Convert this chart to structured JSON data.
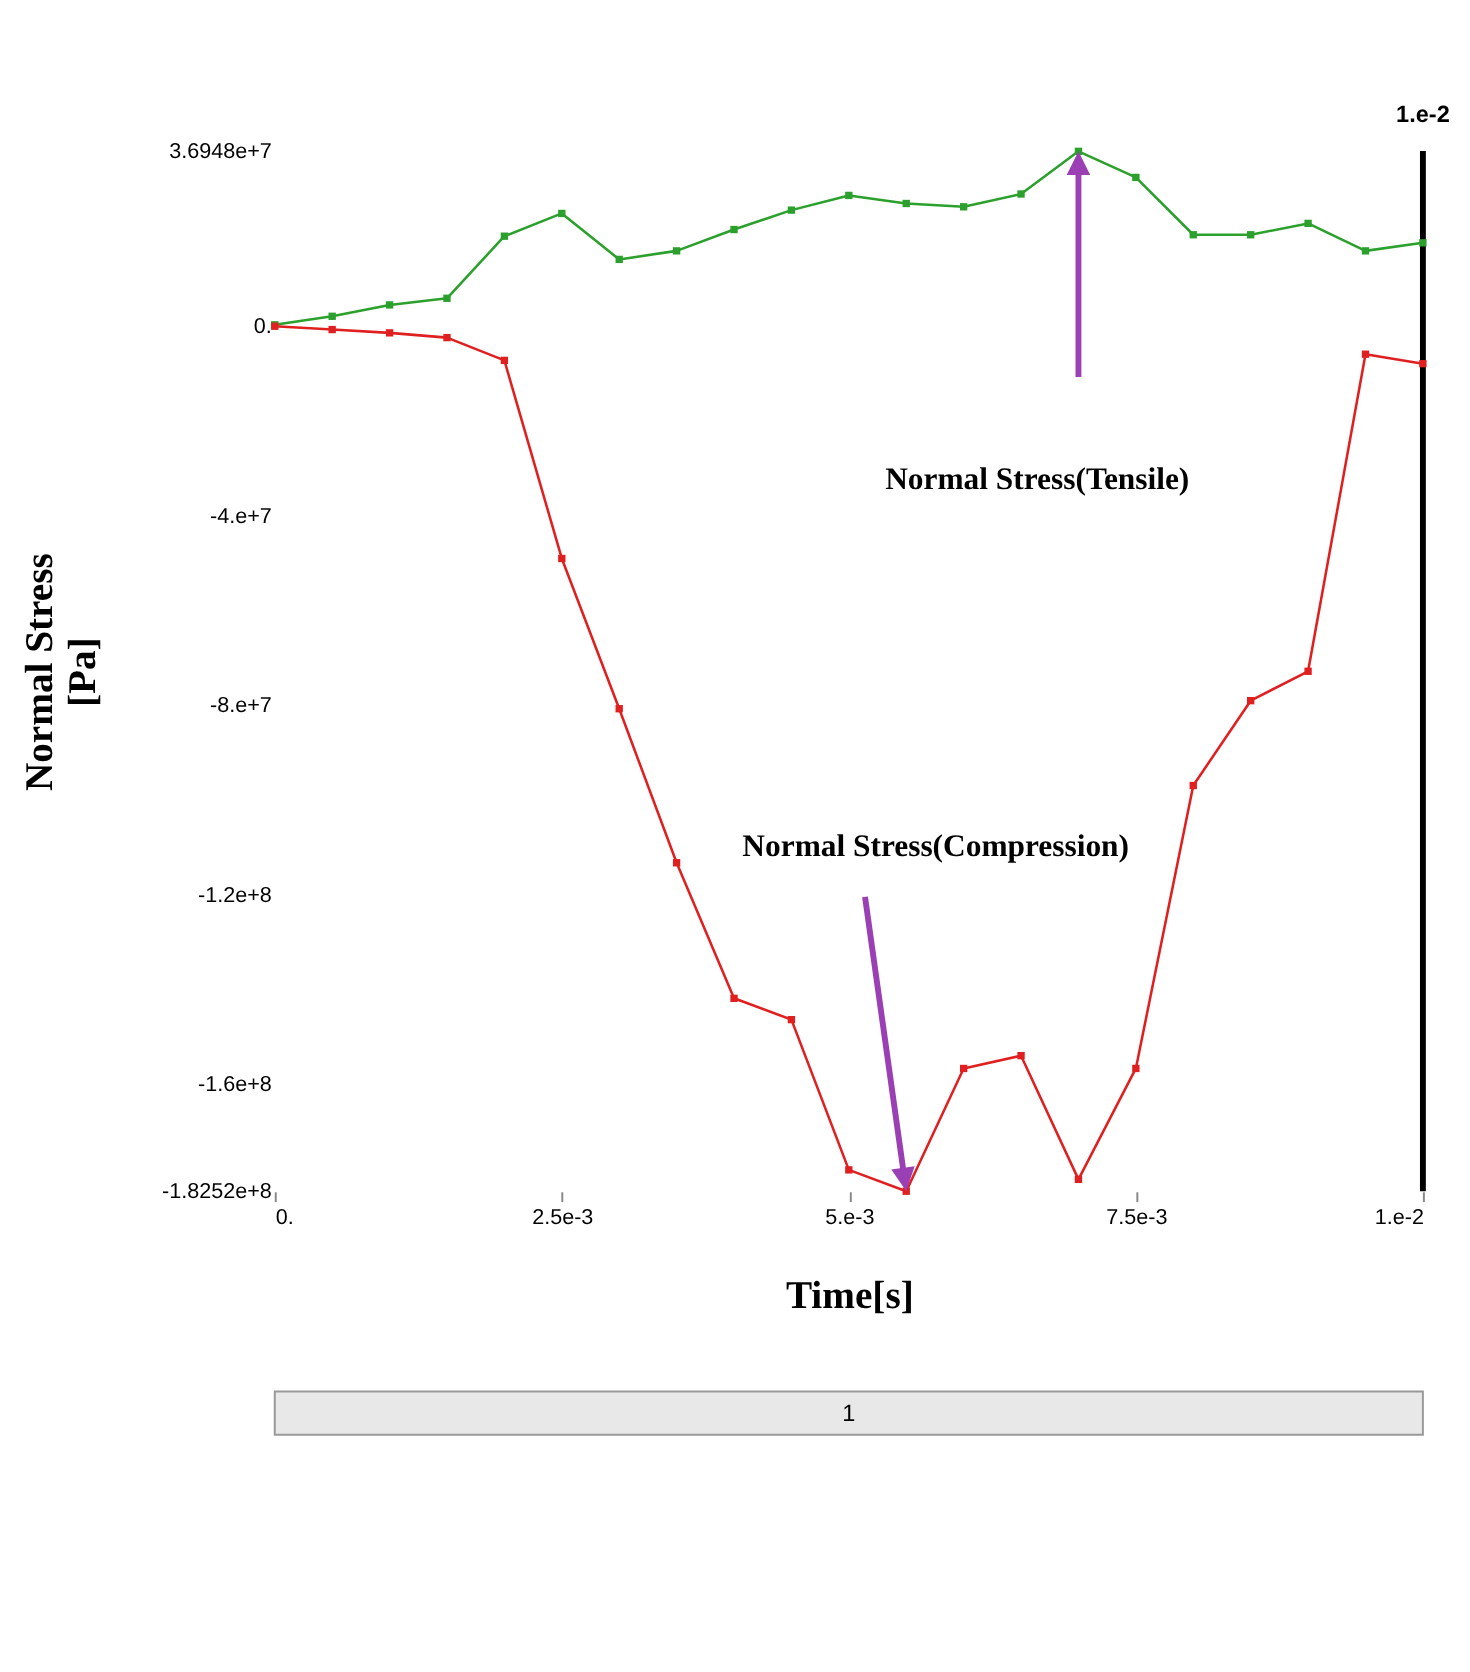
{
  "chart_data": {
    "type": "line",
    "xlabel": "Time[s]",
    "ylabel": "Normal Stress\n[Pa]",
    "x": [
      0,
      0.0005,
      0.001,
      0.0015,
      0.002,
      0.0025,
      0.003,
      0.0035,
      0.004,
      0.0045,
      0.005,
      0.0055,
      0.006,
      0.0065,
      0.007,
      0.0075,
      0.008,
      0.0085,
      0.009,
      0.0095,
      0.01
    ],
    "series": [
      {
        "color": "#2ca02c",
        "values": [
          300000,
          2100000,
          4500000,
          5900000,
          19000000,
          23800000,
          14100000,
          15900000,
          20400000,
          24500000,
          27600000,
          25900000,
          25200000,
          27900000,
          36900000,
          31400000,
          19300000,
          19300000,
          21700000,
          15900000,
          17600000
        ]
      },
      {
        "color": "#e02020",
        "values": [
          0,
          -700000,
          -1400000,
          -2400000,
          -7200000,
          -49000000,
          -80700000,
          -113200000,
          -141800000,
          -146300000,
          -178000000,
          -182500000,
          -156600000,
          -153900000,
          -180000000,
          -156600000,
          -96900000,
          -79000000,
          -72800000,
          -5900000,
          -7900000
        ]
      }
    ],
    "xlim": [
      0,
      0.01
    ],
    "xticks": [
      {
        "value": 0,
        "label": "0."
      },
      {
        "value": 0.0025,
        "label": "2.5e-3"
      },
      {
        "value": 0.005,
        "label": "5.e-3"
      },
      {
        "value": 0.0075,
        "label": "7.5e-3"
      },
      {
        "value": 0.01,
        "label": "1.e-2"
      }
    ],
    "ylim": [
      -182520000,
      36948000
    ],
    "yticks": [
      {
        "value": 36948000,
        "label": "3.6948e+7"
      },
      {
        "value": 0,
        "label": "0."
      },
      {
        "value": -40000000,
        "label": "-4.e+7"
      },
      {
        "value": -80000000,
        "label": "-8.e+7"
      },
      {
        "value": -120000000,
        "label": "-1.2e+8"
      },
      {
        "value": -160000000,
        "label": "-1.6e+8"
      },
      {
        "value": -182520000,
        "label": "-1.8252e+8"
      }
    ],
    "ref_lines": [
      {
        "axis": "x",
        "value": 0.01,
        "label": "1.e-2",
        "color": "#000000"
      }
    ],
    "annotations": [
      "Normal Stress(Tensile)",
      "Normal Stress(Compression)",
      "1"
    ],
    "marker": "square",
    "grid": false
  }
}
